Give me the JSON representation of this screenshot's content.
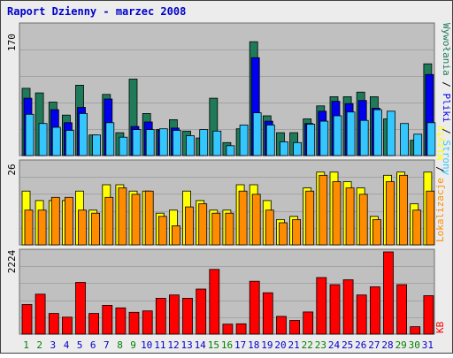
{
  "title": "Raport Dzienny -  marzec 2008",
  "colors": {
    "outer_bg": "#ececec",
    "panel_bg": "#c0c0c0",
    "grid": "#a4a4a4",
    "title": "#0000cc",
    "hits_back": "#1f7a5a",
    "files_mid": "#0000ee",
    "pages_front": "#33c6ff",
    "visits_back": "#ffff00",
    "sites_front": "#ff8c00",
    "kb": "#ff0000",
    "day_weekday": "#0000cc",
    "day_weekend": "#008000"
  },
  "ylabels": {
    "top_max": "170",
    "mid_max": "26",
    "bottom_max": "2224"
  },
  "legend_top": {
    "hits": "Wywołania",
    "sep1": " / ",
    "files": "Pliki",
    "sep2": " / ",
    "pages": "Strony"
  },
  "legend_mid": {
    "visits": "Wizyty",
    "sep": " / ",
    "sites": "Lokalizacje"
  },
  "legend_bottom": {
    "kb": "KB"
  },
  "chart_data": {
    "type": "bar",
    "title": "Raport Dzienny -  marzec 2008",
    "x": [
      "1",
      "2",
      "3",
      "4",
      "5",
      "6",
      "7",
      "8",
      "9",
      "10",
      "11",
      "12",
      "13",
      "14",
      "15",
      "16",
      "17",
      "18",
      "19",
      "20",
      "21",
      "22",
      "23",
      "24",
      "25",
      "26",
      "27",
      "28",
      "29",
      "30",
      "31"
    ],
    "weekend_days": [
      "1",
      "2",
      "8",
      "9",
      "15",
      "16",
      "22",
      "23",
      "29",
      "30"
    ],
    "panels": [
      {
        "name": "top",
        "ylim": [
          0,
          170
        ],
        "series": [
          {
            "name": "Wywołania",
            "values": [
              88,
              82,
              70,
              53,
              92,
              27,
              80,
              30,
              100,
              55,
              34,
              47,
              32,
              23,
              75,
              17,
              35,
              149,
              52,
              30,
              30,
              48,
              65,
              77,
              77,
              83,
              77,
              48,
              0,
              20,
              120
            ]
          },
          {
            "name": "Pliki",
            "values": [
              75,
              0,
              60,
              43,
              63,
              0,
              74,
              0,
              38,
              44,
              33,
              36,
              0,
              0,
              0,
              0,
              0,
              128,
              45,
              0,
              0,
              42,
              58,
              71,
              68,
              72,
              62,
              0,
              0,
              0,
              106
            ]
          },
          {
            "name": "Strony",
            "values": [
              54,
              42,
              37,
              33,
              55,
              27,
              43,
              24,
              34,
              34,
              35,
              33,
              26,
              34,
              32,
              13,
              40,
              56,
              40,
              18,
              17,
              41,
              45,
              52,
              57,
              46,
              60,
              58,
              42,
              28,
              43
            ]
          }
        ]
      },
      {
        "name": "middle",
        "ylim": [
          0,
          26
        ],
        "series": [
          {
            "name": "Wizyty",
            "values": [
              17,
              14,
              14,
              14,
              17,
              11,
              19,
              19,
              17,
              17,
              10,
              11,
              17,
              14,
              11,
              11,
              19,
              19,
              14,
              8,
              9,
              18,
              23,
              23,
              20,
              18,
              9,
              22,
              23,
              13,
              23
            ]
          },
          {
            "name": "Lokalizacje",
            "values": [
              11,
              11,
              15,
              15,
              11,
              10,
              15,
              18,
              16,
              17,
              9,
              6,
              12,
              13,
              10,
              10,
              17,
              16,
              11,
              7,
              8,
              17,
              22,
              20,
              18,
              16,
              8,
              20,
              22,
              11,
              17
            ]
          }
        ]
      },
      {
        "name": "bottom",
        "ylim": [
          0,
          2224
        ],
        "series": [
          {
            "name": "KB",
            "values": [
              800,
              1080,
              560,
              460,
              1400,
              560,
              780,
              710,
              590,
              630,
              970,
              1060,
              970,
              1220,
              1750,
              270,
              280,
              1430,
              1120,
              480,
              370,
              600,
              1530,
              1340,
              1470,
              1060,
              1280,
              2224,
              1340,
              200,
              1040
            ]
          }
        ]
      }
    ]
  }
}
